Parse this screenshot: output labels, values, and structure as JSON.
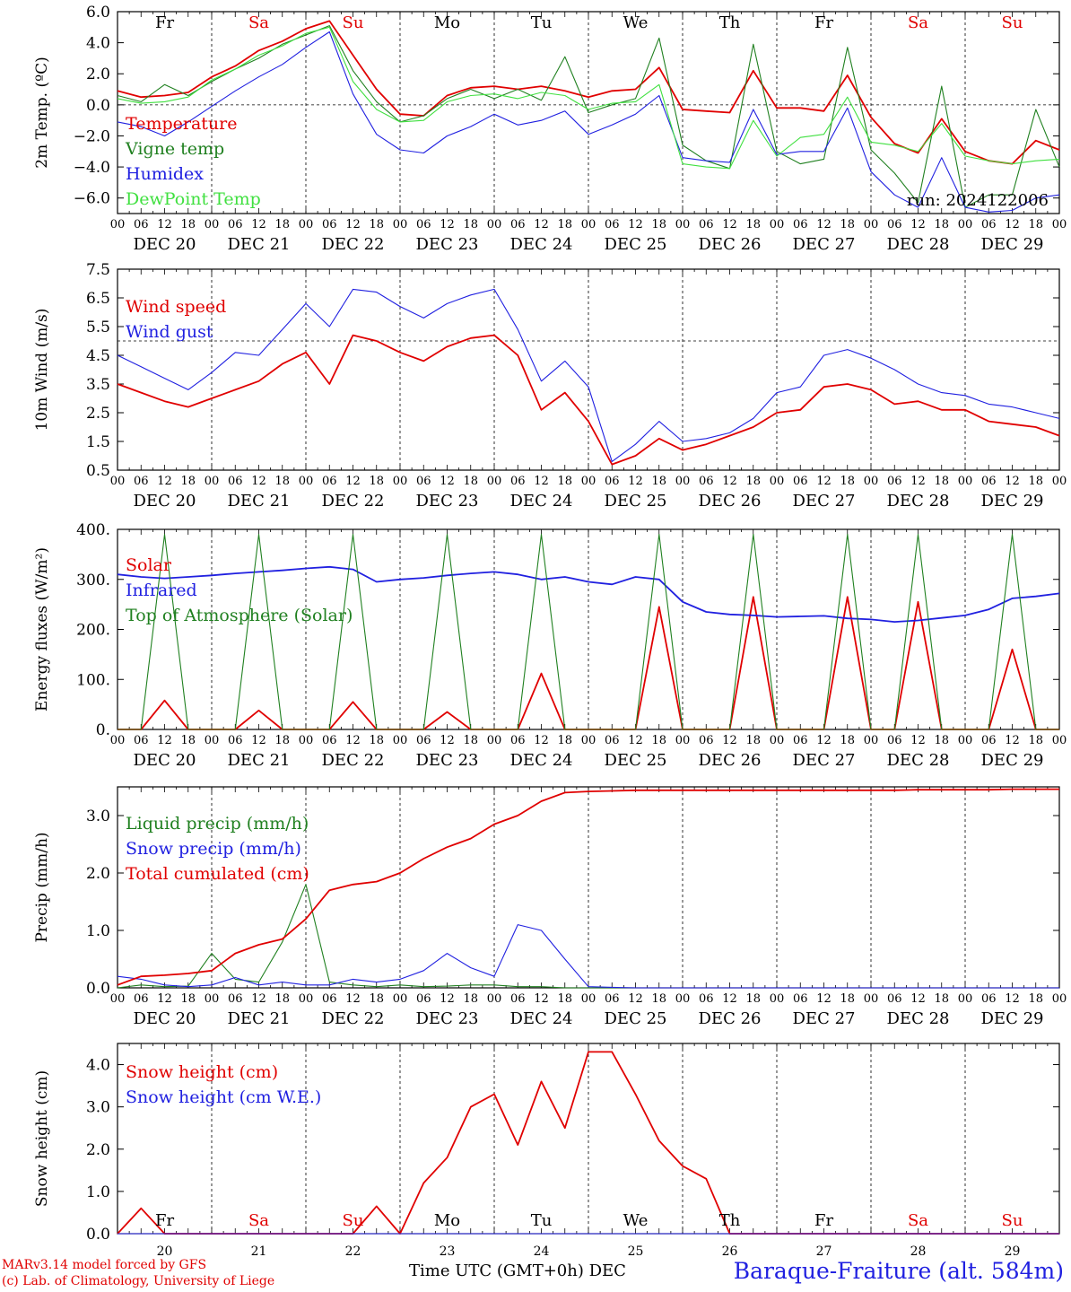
{
  "run_label": "run: 2024122006",
  "footer": {
    "credit_line1": "MARv3.14 model forced by GFS",
    "credit_line2": "(c) Lab. of Climatology, University of Liege",
    "xlabel": "Time UTC (GMT+0h)",
    "xunit": "DEC",
    "station": "Baraque-Fraiture (alt. 584m)"
  },
  "colors": {
    "red": "#e00000",
    "green": "#208020",
    "blue": "#2020e0",
    "lightgreen": "#40e040",
    "black": "#000000"
  },
  "day_names": [
    "Fr",
    "Sa",
    "Su",
    "Mo",
    "Tu",
    "We",
    "Th",
    "Fr",
    "Sa",
    "Su"
  ],
  "weekend_days": [
    1,
    2,
    8,
    9
  ],
  "date_labels": [
    "DEC 20",
    "DEC 21",
    "DEC 22",
    "DEC 23",
    "DEC 24",
    "DEC 25",
    "DEC 26",
    "DEC 27",
    "DEC 28",
    "DEC 29"
  ],
  "day_numbers": [
    "20",
    "21",
    "22",
    "23",
    "24",
    "25",
    "26",
    "27",
    "28",
    "29"
  ],
  "hour_ticks": [
    "00",
    "06",
    "12",
    "18"
  ],
  "chart_data": [
    {
      "type": "line",
      "ylabel": "2m Temp. (ºC)",
      "ylim": [
        -7,
        6
      ],
      "yticks": [
        "6.0",
        "4.0",
        "2.0",
        "0.0",
        "−2.0",
        "−4.0",
        "−6.0"
      ],
      "ytick_values": [
        6,
        4,
        2,
        0,
        -2,
        -4,
        -6
      ],
      "ref_line": 0,
      "x_hours": [
        0,
        6,
        12,
        18,
        24,
        30,
        36,
        42,
        48,
        54,
        60,
        66,
        72,
        78,
        84,
        90,
        96,
        102,
        108,
        114,
        120,
        126,
        132,
        138,
        144,
        150,
        156,
        162,
        168,
        174,
        180,
        186,
        192,
        198,
        204,
        210,
        216,
        222,
        228,
        234,
        240
      ],
      "series": [
        {
          "name": "Temperature",
          "color": "red",
          "values": [
            0.9,
            0.5,
            0.6,
            0.8,
            1.8,
            2.5,
            3.5,
            4.1,
            4.9,
            5.4,
            3.2,
            1.0,
            -0.6,
            -0.7,
            0.6,
            1.1,
            1.2,
            1.0,
            1.2,
            0.9,
            0.5,
            0.9,
            1.0,
            2.4,
            -0.3,
            -0.4,
            -0.5,
            2.2,
            -0.2,
            -0.2,
            -0.4,
            1.9,
            -0.8,
            -2.5,
            -3.1,
            -0.9,
            -3.0,
            -3.6,
            -3.8,
            -2.3,
            -2.9
          ]
        },
        {
          "name": "Vigne temp",
          "color": "green",
          "values": [
            0.6,
            0.2,
            1.3,
            0.6,
            1.5,
            2.3,
            3.0,
            3.9,
            4.5,
            5.1,
            2.2,
            0.2,
            -1.1,
            -0.7,
            0.4,
            1.0,
            0.4,
            1.0,
            0.3,
            3.1,
            -0.5,
            0.0,
            0.4,
            4.3,
            -2.6,
            -3.6,
            -4.1,
            3.9,
            -3.0,
            -3.8,
            -3.5,
            3.7,
            -2.9,
            -4.4,
            -6.3,
            1.2,
            -6.6,
            -5.8,
            -5.8,
            -0.3,
            -4.0
          ]
        },
        {
          "name": "Humidex",
          "color": "blue",
          "values": [
            -1.1,
            -1.4,
            -2.0,
            -1.1,
            -0.1,
            0.9,
            1.8,
            2.6,
            3.7,
            4.7,
            0.7,
            -1.9,
            -2.9,
            -3.1,
            -2.0,
            -1.4,
            -0.6,
            -1.3,
            -1.0,
            -0.4,
            -1.9,
            -1.3,
            -0.6,
            0.6,
            -3.4,
            -3.6,
            -3.7,
            -0.3,
            -3.2,
            -3.0,
            -3.0,
            -0.2,
            -4.3,
            -5.8,
            -6.6,
            -3.4,
            -6.6,
            -6.9,
            -6.8,
            -6.0,
            -5.8
          ]
        },
        {
          "name": "DewPoint Temp",
          "color": "lightgreen",
          "values": [
            0.4,
            0.1,
            0.2,
            0.5,
            1.6,
            2.3,
            3.2,
            3.8,
            4.6,
            5.0,
            1.5,
            -0.3,
            -1.1,
            -1.0,
            0.2,
            0.6,
            0.7,
            0.4,
            0.8,
            0.6,
            -0.3,
            0.1,
            0.2,
            1.3,
            -3.8,
            -4.0,
            -4.1,
            -1.0,
            -3.3,
            -2.1,
            -1.9,
            0.5,
            -2.4,
            -2.6,
            -3.0,
            -1.2,
            -3.3,
            -3.6,
            -3.8,
            -3.6,
            -3.5
          ]
        }
      ]
    },
    {
      "type": "line",
      "ylabel": "10m Wind (m/s)",
      "ylim": [
        0.5,
        7.5
      ],
      "yticks": [
        "7.5",
        "6.5",
        "5.5",
        "4.5",
        "3.5",
        "2.5",
        "1.5",
        "0.5"
      ],
      "ytick_values": [
        7.5,
        6.5,
        5.5,
        4.5,
        3.5,
        2.5,
        1.5,
        0.5
      ],
      "ref_line": 5,
      "x_hours": [
        0,
        6,
        12,
        18,
        24,
        30,
        36,
        42,
        48,
        54,
        60,
        66,
        72,
        78,
        84,
        90,
        96,
        102,
        108,
        114,
        120,
        126,
        132,
        138,
        144,
        150,
        156,
        162,
        168,
        174,
        180,
        186,
        192,
        198,
        204,
        210,
        216,
        222,
        228,
        234,
        240
      ],
      "series": [
        {
          "name": "Wind speed",
          "color": "red",
          "values": [
            3.5,
            3.2,
            2.9,
            2.7,
            3.0,
            3.3,
            3.6,
            4.2,
            4.6,
            3.5,
            5.2,
            5.0,
            4.6,
            4.3,
            4.8,
            5.1,
            5.2,
            4.5,
            2.6,
            3.2,
            2.2,
            0.7,
            1.0,
            1.6,
            1.2,
            1.4,
            1.7,
            2.0,
            2.5,
            2.6,
            3.4,
            3.5,
            3.3,
            2.8,
            2.9,
            2.6,
            2.6,
            2.2,
            2.1,
            2.0,
            1.7
          ]
        },
        {
          "name": "Wind gust",
          "color": "blue",
          "values": [
            4.5,
            4.1,
            3.7,
            3.3,
            3.9,
            4.6,
            4.5,
            5.4,
            6.3,
            5.5,
            6.8,
            6.7,
            6.2,
            5.8,
            6.3,
            6.6,
            6.8,
            5.4,
            3.6,
            4.3,
            3.4,
            0.8,
            1.4,
            2.2,
            1.5,
            1.6,
            1.8,
            2.3,
            3.2,
            3.4,
            4.5,
            4.7,
            4.4,
            4.0,
            3.5,
            3.2,
            3.1,
            2.8,
            2.7,
            2.5,
            2.3
          ]
        }
      ]
    },
    {
      "type": "line",
      "ylabel": "Energy fluxes (W/m²)",
      "ylim": [
        0,
        400
      ],
      "yticks": [
        "400.",
        "300.",
        "200.",
        "100.",
        "0."
      ],
      "ytick_values": [
        400,
        300,
        200,
        100,
        0
      ],
      "x_hours": [
        0,
        6,
        12,
        18,
        24,
        30,
        36,
        42,
        48,
        54,
        60,
        66,
        72,
        78,
        84,
        90,
        96,
        102,
        108,
        114,
        120,
        126,
        132,
        138,
        144,
        150,
        156,
        162,
        168,
        174,
        180,
        186,
        192,
        198,
        204,
        210,
        216,
        222,
        228,
        234,
        240
      ],
      "series": [
        {
          "name": "Solar",
          "color": "red",
          "values": [
            0,
            0,
            58,
            0,
            0,
            0,
            38,
            0,
            0,
            0,
            55,
            0,
            0,
            0,
            35,
            0,
            0,
            0,
            112,
            0,
            0,
            0,
            0,
            245,
            0,
            0,
            0,
            265,
            0,
            0,
            0,
            265,
            0,
            0,
            255,
            0,
            0,
            0,
            160,
            0,
            0
          ]
        },
        {
          "name": "Infrared",
          "color": "blue",
          "values": [
            310,
            305,
            302,
            305,
            308,
            312,
            315,
            318,
            322,
            325,
            320,
            295,
            300,
            303,
            308,
            312,
            315,
            310,
            300,
            305,
            295,
            290,
            305,
            300,
            255,
            235,
            230,
            228,
            225,
            226,
            227,
            222,
            220,
            215,
            218,
            223,
            228,
            240,
            262,
            266,
            272
          ]
        },
        {
          "name": "Top of Atmosphere (Solar)",
          "color": "green",
          "values": [
            0,
            0,
            390,
            0,
            0,
            0,
            390,
            0,
            0,
            0,
            390,
            0,
            0,
            0,
            390,
            0,
            0,
            0,
            390,
            0,
            0,
            0,
            0,
            390,
            0,
            0,
            0,
            390,
            0,
            0,
            0,
            390,
            0,
            0,
            390,
            0,
            0,
            0,
            390,
            0,
            0
          ]
        }
      ]
    },
    {
      "type": "line",
      "ylabel": "Precip (mm/h)",
      "ylim": [
        0,
        3.5
      ],
      "yticks": [
        "3.0",
        "2.0",
        "1.0",
        "0.0"
      ],
      "ytick_values": [
        3,
        2,
        1,
        0
      ],
      "x_hours": [
        0,
        6,
        12,
        18,
        24,
        30,
        36,
        42,
        48,
        54,
        60,
        66,
        72,
        78,
        84,
        90,
        96,
        102,
        108,
        114,
        120,
        126,
        132,
        138,
        144,
        150,
        156,
        162,
        168,
        174,
        180,
        186,
        192,
        198,
        204,
        210,
        216,
        222,
        228,
        234,
        240
      ],
      "series": [
        {
          "name": "Liquid precip (mm/h)",
          "color": "green",
          "values": [
            0.0,
            0.05,
            0.02,
            0.03,
            0.6,
            0.15,
            0.1,
            0.8,
            1.8,
            0.1,
            0.05,
            0.02,
            0.05,
            0.02,
            0.03,
            0.05,
            0.05,
            0.02,
            0.02,
            0.0,
            0,
            0,
            0,
            0,
            0,
            0,
            0,
            0,
            0,
            0,
            0,
            0,
            0,
            0,
            0,
            0,
            0,
            0,
            0,
            0,
            0
          ]
        },
        {
          "name": "Snow precip (mm/h)",
          "color": "blue",
          "values": [
            0.2,
            0.15,
            0.05,
            0.02,
            0.05,
            0.18,
            0.05,
            0.1,
            0.05,
            0.05,
            0.15,
            0.1,
            0.15,
            0.3,
            0.6,
            0.35,
            0.2,
            1.1,
            1.0,
            0.5,
            0.02,
            0.01,
            0,
            0,
            0,
            0,
            0,
            0,
            0,
            0,
            0,
            0,
            0,
            0,
            0,
            0,
            0,
            0,
            0,
            0,
            0
          ]
        },
        {
          "name": "Total cumulated (cm)",
          "color": "red",
          "values": [
            0.05,
            0.2,
            0.22,
            0.25,
            0.3,
            0.6,
            0.75,
            0.85,
            1.2,
            1.7,
            1.8,
            1.85,
            2.0,
            2.25,
            2.45,
            2.6,
            2.85,
            3.0,
            3.25,
            3.4,
            3.42,
            3.43,
            3.44,
            3.44,
            3.44,
            3.44,
            3.44,
            3.44,
            3.44,
            3.44,
            3.44,
            3.44,
            3.44,
            3.44,
            3.45,
            3.45,
            3.45,
            3.45,
            3.46,
            3.46,
            3.46
          ]
        }
      ]
    },
    {
      "type": "line",
      "ylabel": "Snow height (cm)",
      "ylim": [
        0,
        4.5
      ],
      "yticks": [
        "4.0",
        "3.0",
        "2.0",
        "1.0",
        "0.0"
      ],
      "ytick_values": [
        4,
        3,
        2,
        1,
        0
      ],
      "x_hours": [
        0,
        6,
        12,
        18,
        24,
        30,
        36,
        42,
        48,
        54,
        60,
        66,
        72,
        78,
        84,
        90,
        96,
        102,
        108,
        114,
        120,
        126,
        132,
        138,
        144,
        150,
        156,
        162,
        168,
        174,
        180,
        186,
        192,
        198,
        204,
        210,
        216,
        222,
        228,
        234,
        240
      ],
      "series": [
        {
          "name": "Snow height (cm)",
          "color": "red",
          "values": [
            0,
            0.6,
            0,
            0,
            0,
            0,
            0,
            0,
            0,
            0,
            0,
            0.65,
            0,
            1.2,
            1.8,
            3.0,
            3.3,
            2.1,
            3.6,
            2.5,
            4.3,
            4.3,
            3.3,
            2.2,
            1.6,
            1.3,
            0.0,
            0,
            0,
            0,
            0,
            0,
            0,
            0,
            0,
            0,
            0,
            0,
            0,
            0,
            0
          ]
        },
        {
          "name": "Snow height (cm W.E.)",
          "color": "blue",
          "values": [
            0,
            0,
            0,
            0,
            0,
            0,
            0,
            0,
            0,
            0,
            0,
            0,
            0,
            0,
            0,
            0,
            0,
            0,
            0,
            0,
            0,
            0,
            0,
            0,
            0,
            0,
            0,
            0,
            0,
            0,
            0,
            0,
            0,
            0,
            0,
            0,
            0,
            0,
            0,
            0,
            0
          ]
        }
      ]
    }
  ]
}
